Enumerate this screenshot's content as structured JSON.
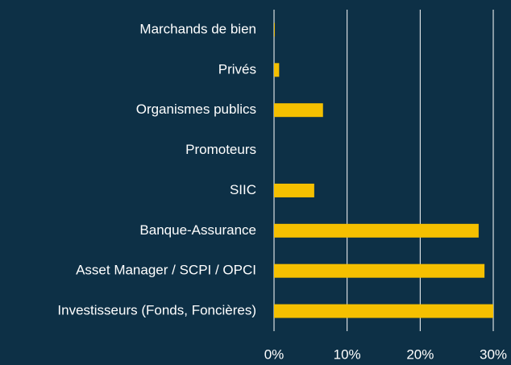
{
  "chart_data": {
    "type": "hbar",
    "categories": [
      "Marchands de bien",
      "Privés",
      "Organismes publics",
      "Promoteurs",
      "SIIC",
      "Banque-Assurance",
      "Asset Manager / SCPI / OPCI",
      "Investisseurs (Fonds, Foncières)"
    ],
    "values": [
      0.1,
      0.7,
      6.7,
      0,
      5.5,
      28.0,
      28.8,
      30.0
    ],
    "color": "#f5c000",
    "xlim": [
      0,
      30
    ],
    "xticks": [
      {
        "value": 0,
        "label": "0%"
      },
      {
        "value": 10,
        "label": "10%"
      },
      {
        "value": 20,
        "label": "20%"
      },
      {
        "value": 30,
        "label": "30%"
      }
    ],
    "grid": true
  }
}
